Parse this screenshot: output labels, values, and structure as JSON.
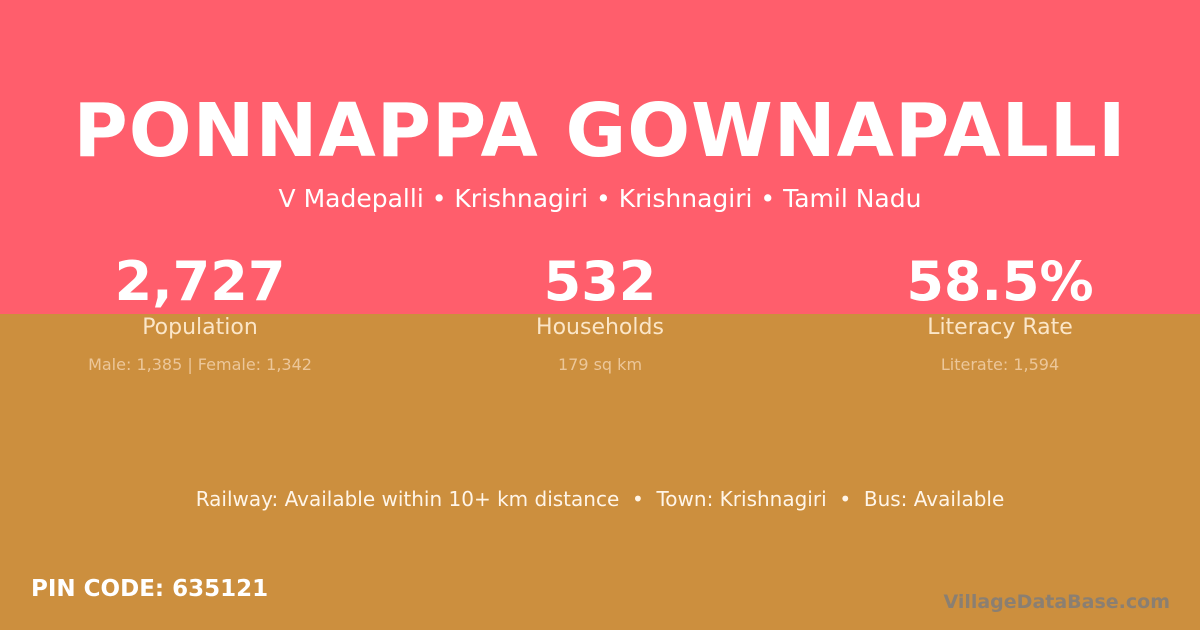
{
  "village": {
    "name": "PONNAPPA GOWNAPALLI",
    "location": "V Madepalli • Krishnagiri • Krishnagiri • Tamil Nadu"
  },
  "stats": [
    {
      "value": "2,727",
      "label": "Population",
      "detail": "Male: 1,385 | Female: 1,342"
    },
    {
      "value": "532",
      "label": "Households",
      "detail": "179 sq km"
    },
    {
      "value": "58.5%",
      "label": "Literacy Rate",
      "detail": "Literate: 1,594"
    }
  ],
  "connectivity": "Railway: Available within 10+ km distance  •  Town: Krishnagiri  •  Bus: Available",
  "pin_code": "PIN CODE: 635121",
  "brand": "VillageDataBase.com",
  "colors": {
    "top": "#ff5e6c",
    "bottom": "#cc8f3e"
  }
}
